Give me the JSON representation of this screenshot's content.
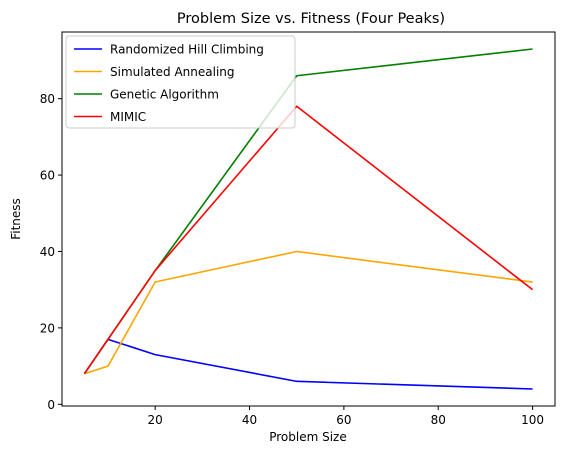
{
  "chart_data": {
    "type": "line",
    "title": "Problem Size vs. Fitness (Four Peaks)",
    "xlabel": "Problem Size",
    "ylabel": "Fitness",
    "xlim": [
      0.25,
      104.75
    ],
    "ylim": [
      -0.45,
      97.45
    ],
    "xticks": [
      20,
      40,
      60,
      80,
      100
    ],
    "yticks": [
      0,
      20,
      40,
      60,
      80
    ],
    "grid": false,
    "legend_position": "upper-left",
    "series": [
      {
        "name": "Randomized Hill Climbing",
        "color": "#0000ff",
        "x": [
          5,
          10,
          20,
          50,
          100
        ],
        "y": [
          8,
          17,
          13,
          6,
          4
        ]
      },
      {
        "name": "Simulated Annealing",
        "color": "#ffa500",
        "x": [
          5,
          10,
          20,
          50,
          100
        ],
        "y": [
          8,
          10,
          32,
          40,
          32
        ]
      },
      {
        "name": "Genetic Algorithm",
        "color": "#008000",
        "x": [
          5,
          10,
          20,
          50,
          100
        ],
        "y": [
          8,
          17,
          35,
          86,
          93
        ]
      },
      {
        "name": "MIMIC",
        "color": "#ff0000",
        "x": [
          5,
          10,
          20,
          50,
          100
        ],
        "y": [
          8,
          17,
          35,
          78,
          30
        ]
      }
    ]
  }
}
